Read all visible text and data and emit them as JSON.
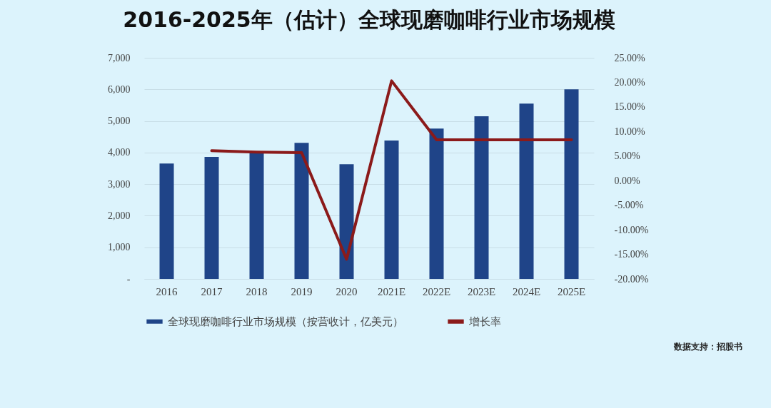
{
  "chart_data": {
    "type": "bar",
    "title": "2016-2025年（估计）全球现磨咖啡行业市场规模",
    "categories": [
      "2016",
      "2017",
      "2018",
      "2019",
      "2020",
      "2021E",
      "2022E",
      "2023E",
      "2024E",
      "2025E"
    ],
    "series": [
      {
        "name": "全球现磨咖啡行业市场规模（按营收计，亿美元）",
        "color": "#1f4488",
        "values": [
          3650,
          3860,
          4040,
          4310,
          3630,
          4380,
          4760,
          5150,
          5550,
          6000
        ]
      },
      {
        "name": "增长率",
        "type": "line",
        "axis": "y2",
        "color": "#8b1a1a",
        "values": [
          null,
          6.1,
          5.8,
          5.7,
          -16.0,
          20.3,
          8.3,
          8.3,
          8.3,
          8.3
        ]
      }
    ],
    "ylim": [
      0,
      7000
    ],
    "yticks": [
      {
        "value": 0,
        "label": "-"
      },
      {
        "value": 1000,
        "label": "1,000"
      },
      {
        "value": 2000,
        "label": "2,000"
      },
      {
        "value": 3000,
        "label": "3,000"
      },
      {
        "value": 4000,
        "label": "4,000"
      },
      {
        "value": 5000,
        "label": "5,000"
      },
      {
        "value": 6000,
        "label": "6,000"
      },
      {
        "value": 7000,
        "label": "7,000"
      }
    ],
    "y2lim": [
      -20,
      25
    ],
    "y2ticks": [
      {
        "value": -20,
        "label": "-20.00%"
      },
      {
        "value": -15,
        "label": "-15.00%"
      },
      {
        "value": -10,
        "label": "-10.00%"
      },
      {
        "value": -5,
        "label": "-5.00%"
      },
      {
        "value": 0,
        "label": "0.00%"
      },
      {
        "value": 5,
        "label": "5.00%"
      },
      {
        "value": 10,
        "label": "10.00%"
      },
      {
        "value": 15,
        "label": "15.00%"
      },
      {
        "value": 20,
        "label": "20.00%"
      },
      {
        "value": 25,
        "label": "25.00%"
      }
    ],
    "grid": "y",
    "legend": "bottom",
    "annotations": [
      "数据支持：招股书"
    ]
  }
}
